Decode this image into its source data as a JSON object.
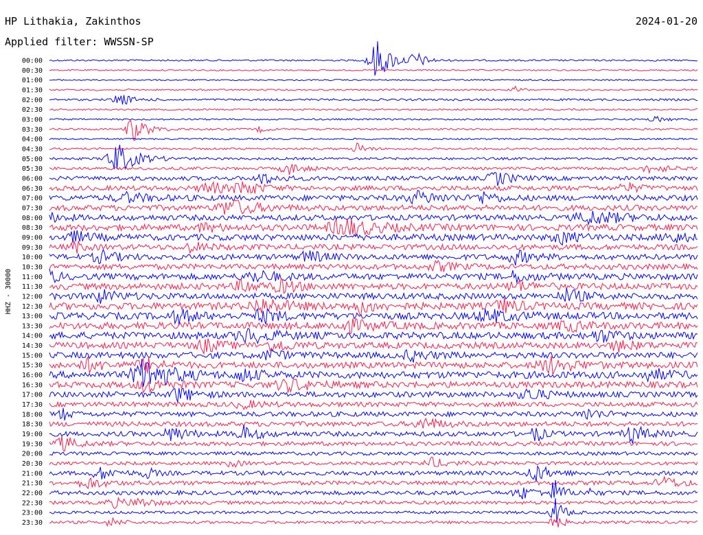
{
  "header": {
    "station": "HP Lithakia, Zakinthos",
    "date": "2024-01-20",
    "filter": "Applied filter: WWSSN-SP"
  },
  "chart_data": {
    "type": "helicorder",
    "ylabel": "HHZ - 30000",
    "colors": [
      "#0000ff",
      "#ff1a4a"
    ],
    "rows": [
      {
        "label": "00:00",
        "noise": 1.2,
        "events": [
          [
            0.505,
            30,
            0.02
          ],
          [
            0.565,
            12,
            0.012
          ]
        ]
      },
      {
        "label": "00:30",
        "noise": 1.0,
        "events": []
      },
      {
        "label": "01:00",
        "noise": 1.0,
        "events": []
      },
      {
        "label": "01:30",
        "noise": 1.2,
        "events": [
          [
            0.72,
            5,
            0.008
          ]
        ]
      },
      {
        "label": "02:00",
        "noise": 1.5,
        "events": [
          [
            0.108,
            10,
            0.015
          ]
        ]
      },
      {
        "label": "02:30",
        "noise": 1.2,
        "events": []
      },
      {
        "label": "03:00",
        "noise": 1.2,
        "events": [
          [
            0.935,
            4,
            0.015
          ]
        ]
      },
      {
        "label": "03:30",
        "noise": 1.3,
        "events": [
          [
            0.13,
            18,
            0.018
          ],
          [
            0.325,
            4,
            0.01
          ]
        ]
      },
      {
        "label": "04:00",
        "noise": 1.2,
        "events": []
      },
      {
        "label": "04:30",
        "noise": 1.5,
        "events": [
          [
            0.475,
            9,
            0.01
          ]
        ]
      },
      {
        "label": "05:00",
        "noise": 1.8,
        "events": [
          [
            0.105,
            22,
            0.025
          ]
        ]
      },
      {
        "label": "05:30",
        "noise": 2.0,
        "events": [
          [
            0.37,
            8,
            0.02
          ],
          [
            0.93,
            7,
            0.02
          ]
        ]
      },
      {
        "label": "06:00",
        "noise": 3.0,
        "events": [
          [
            0.33,
            7,
            0.02
          ],
          [
            0.69,
            10,
            0.02
          ]
        ]
      },
      {
        "label": "06:30",
        "noise": 3.5,
        "events": [
          [
            0.245,
            9,
            0.02
          ],
          [
            0.3,
            10,
            0.02
          ],
          [
            0.89,
            7,
            0.015
          ]
        ]
      },
      {
        "label": "07:00",
        "noise": 4.0,
        "events": [
          [
            0.12,
            6,
            0.03
          ],
          [
            0.57,
            8,
            0.03
          ],
          [
            0.67,
            7,
            0.02
          ]
        ]
      },
      {
        "label": "07:30",
        "noise": 4.0,
        "events": [
          [
            0.28,
            12,
            0.03
          ]
        ]
      },
      {
        "label": "08:00",
        "noise": 4.0,
        "events": [
          [
            0.84,
            9,
            0.04
          ],
          [
            0.0,
            5,
            0.02
          ]
        ]
      },
      {
        "label": "08:30",
        "noise": 4.5,
        "events": [
          [
            0.46,
            12,
            0.04
          ],
          [
            0.24,
            5,
            0.02
          ]
        ]
      },
      {
        "label": "09:00",
        "noise": 4.5,
        "events": [
          [
            0.04,
            7,
            0.02
          ],
          [
            0.79,
            8,
            0.02
          ],
          [
            0.96,
            7,
            0.02
          ]
        ]
      },
      {
        "label": "09:30",
        "noise": 4.0,
        "events": [
          [
            0.22,
            6,
            0.02
          ],
          [
            0.04,
            8,
            0.01
          ]
        ]
      },
      {
        "label": "10:00",
        "noise": 4.0,
        "events": [
          [
            0.08,
            8,
            0.02
          ],
          [
            0.4,
            8,
            0.02
          ],
          [
            0.72,
            9,
            0.02
          ]
        ]
      },
      {
        "label": "10:30",
        "noise": 4.0,
        "events": [
          [
            0.6,
            6,
            0.02
          ]
        ]
      },
      {
        "label": "11:00",
        "noise": 4.5,
        "events": [
          [
            0.0,
            10,
            0.01
          ],
          [
            0.32,
            7,
            0.03
          ],
          [
            0.72,
            7,
            0.02
          ]
        ]
      },
      {
        "label": "11:30",
        "noise": 4.5,
        "events": [
          [
            0.3,
            8,
            0.02
          ],
          [
            0.36,
            8,
            0.02
          ],
          [
            0.72,
            7,
            0.02
          ]
        ]
      },
      {
        "label": "12:00",
        "noise": 4.5,
        "events": [
          [
            0.08,
            8,
            0.02
          ],
          [
            0.8,
            9,
            0.02
          ]
        ]
      },
      {
        "label": "12:30",
        "noise": 5.0,
        "events": [
          [
            0.33,
            10,
            0.03
          ],
          [
            0.48,
            9,
            0.02
          ],
          [
            0.7,
            9,
            0.02
          ]
        ]
      },
      {
        "label": "13:00",
        "noise": 5.0,
        "events": [
          [
            0.2,
            9,
            0.02
          ],
          [
            0.33,
            9,
            0.02
          ],
          [
            0.68,
            8,
            0.03
          ]
        ]
      },
      {
        "label": "13:30",
        "noise": 5.0,
        "events": [
          [
            0.46,
            8,
            0.03
          ],
          [
            0.8,
            7,
            0.02
          ]
        ]
      },
      {
        "label": "14:00",
        "noise": 5.0,
        "events": [
          [
            0.31,
            9,
            0.03
          ],
          [
            0.85,
            8,
            0.02
          ]
        ]
      },
      {
        "label": "14:30",
        "noise": 4.5,
        "events": [
          [
            0.24,
            9,
            0.02
          ],
          [
            0.35,
            8,
            0.02
          ],
          [
            0.88,
            7,
            0.02
          ]
        ]
      },
      {
        "label": "15:00",
        "noise": 4.5,
        "events": [
          [
            0.56,
            7,
            0.02
          ],
          [
            0.34,
            6,
            0.02
          ]
        ]
      },
      {
        "label": "15:30",
        "noise": 4.5,
        "events": [
          [
            0.06,
            8,
            0.02
          ],
          [
            0.15,
            9,
            0.02
          ],
          [
            0.775,
            11,
            0.03
          ]
        ]
      },
      {
        "label": "16:00",
        "noise": 5.0,
        "events": [
          [
            0.15,
            25,
            0.03
          ],
          [
            0.3,
            8,
            0.02
          ],
          [
            0.93,
            8,
            0.02
          ]
        ]
      },
      {
        "label": "16:30",
        "noise": 4.5,
        "events": [
          [
            0.15,
            10,
            0.02
          ],
          [
            0.37,
            8,
            0.03
          ]
        ]
      },
      {
        "label": "17:00",
        "noise": 4.0,
        "events": [
          [
            0.2,
            10,
            0.02
          ],
          [
            0.74,
            9,
            0.02
          ]
        ]
      },
      {
        "label": "17:30",
        "noise": 3.5,
        "events": [
          [
            0.3,
            5,
            0.02
          ]
        ]
      },
      {
        "label": "18:00",
        "noise": 3.5,
        "events": [
          [
            0.02,
            8,
            0.01
          ],
          [
            0.83,
            7,
            0.02
          ]
        ]
      },
      {
        "label": "18:30",
        "noise": 3.5,
        "events": [
          [
            0.58,
            9,
            0.02
          ]
        ]
      },
      {
        "label": "19:00",
        "noise": 3.5,
        "events": [
          [
            0.19,
            10,
            0.02
          ],
          [
            0.3,
            10,
            0.02
          ],
          [
            0.75,
            12,
            0.01
          ],
          [
            0.9,
            12,
            0.02
          ]
        ]
      },
      {
        "label": "19:30",
        "noise": 3.0,
        "events": [
          [
            0.02,
            10,
            0.02
          ]
        ]
      },
      {
        "label": "20:00",
        "noise": 2.5,
        "events": []
      },
      {
        "label": "20:30",
        "noise": 2.5,
        "events": [
          [
            0.28,
            6,
            0.01
          ],
          [
            0.59,
            7,
            0.02
          ]
        ]
      },
      {
        "label": "21:00",
        "noise": 3.0,
        "events": [
          [
            0.08,
            8,
            0.02
          ],
          [
            0.15,
            8,
            0.01
          ],
          [
            0.75,
            12,
            0.02
          ]
        ]
      },
      {
        "label": "21:30",
        "noise": 3.0,
        "events": [
          [
            0.06,
            8,
            0.02
          ],
          [
            0.95,
            8,
            0.02
          ]
        ]
      },
      {
        "label": "22:00",
        "noise": 3.0,
        "events": [
          [
            0.73,
            8,
            0.02
          ],
          [
            0.78,
            18,
            0.01
          ],
          [
            0.83,
            6,
            0.01
          ]
        ]
      },
      {
        "label": "22:30",
        "noise": 2.5,
        "events": [
          [
            0.1,
            6,
            0.02
          ],
          [
            0.14,
            5,
            0.02
          ]
        ]
      },
      {
        "label": "23:00",
        "noise": 2.0,
        "events": [
          [
            0.78,
            24,
            0.01
          ]
        ]
      },
      {
        "label": "23:30",
        "noise": 2.0,
        "events": [
          [
            0.095,
            6,
            0.015
          ],
          [
            0.78,
            12,
            0.01
          ]
        ]
      }
    ]
  }
}
